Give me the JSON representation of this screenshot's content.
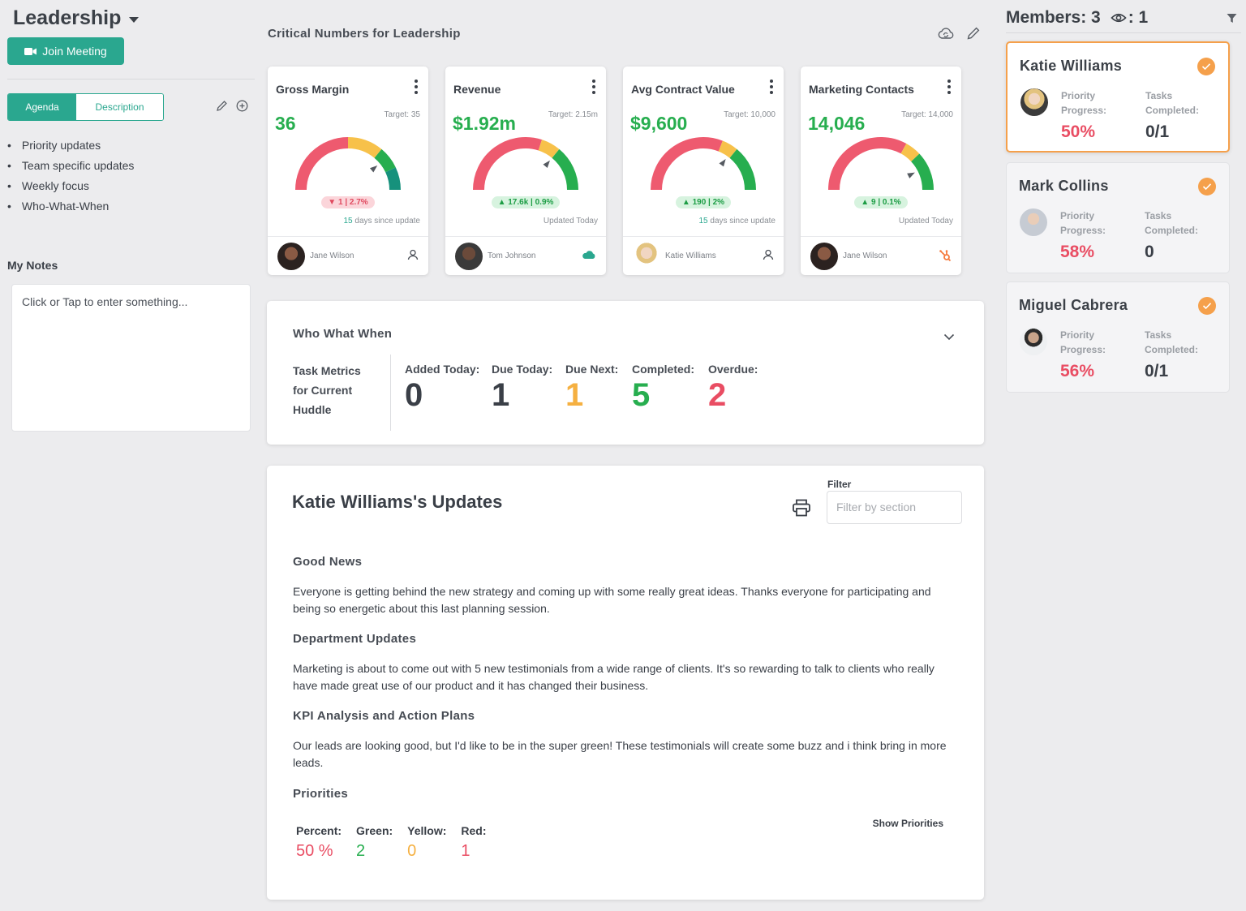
{
  "header": {
    "title": "Leadership",
    "join_label": "Join Meeting"
  },
  "tabs": {
    "agenda": "Agenda",
    "description": "Description"
  },
  "agenda_items": [
    "Priority updates",
    "Team specific updates",
    "Weekly focus",
    "Who-What-When"
  ],
  "notes": {
    "title": "My Notes",
    "placeholder": "Click or Tap to enter something..."
  },
  "critical": {
    "title": "Critical Numbers for Leadership",
    "cards": [
      {
        "name": "Gross Margin",
        "target": "Target: 35",
        "value": "36",
        "delta": "▼ 1  |  2.7%",
        "delta_dir": "down",
        "since_num": "15",
        "since_text": " days since update",
        "owner": "Jane Wilson",
        "source_icon": "user-icon",
        "needle_fraction": 0.78
      },
      {
        "name": "Revenue",
        "target": "Target: 2.15m",
        "value": "$1.92m",
        "delta": "▲ 17.6k  |  0.9%",
        "delta_dir": "up",
        "since_num": "",
        "since_text": "Updated Today",
        "owner": "Tom Johnson",
        "source_icon": "salesforce-icon",
        "needle_fraction": 0.72
      },
      {
        "name": "Avg Contract Value",
        "target": "Target: 10,000",
        "value": "$9,600",
        "delta": "▲ 190  |  2%",
        "delta_dir": "up",
        "since_num": "15",
        "since_text": " days since update",
        "owner": "Katie Williams",
        "source_icon": "user-icon",
        "needle_fraction": 0.7
      },
      {
        "name": "Marketing Contacts",
        "target": "Target: 14,000",
        "value": "14,046",
        "delta": "▲ 9  |  0.1%",
        "delta_dir": "up",
        "since_num": "",
        "since_text": "Updated Today",
        "owner": "Jane Wilson",
        "source_icon": "hubspot-icon",
        "needle_fraction": 0.85
      }
    ]
  },
  "www": {
    "title": "Who What When",
    "task_metrics": "Task Metrics for Current Huddle",
    "metrics": [
      {
        "label": "Added Today:",
        "value": "0",
        "color": "#3a3f47"
      },
      {
        "label": "Due Today:",
        "value": "1",
        "color": "#3a3f47"
      },
      {
        "label": "Due Next:",
        "value": "1",
        "color": "#f5b041"
      },
      {
        "label": "Completed:",
        "value": "5",
        "color": "#27ae4f"
      },
      {
        "label": "Overdue:",
        "value": "2",
        "color": "#e94d63"
      }
    ]
  },
  "updates": {
    "title": "Katie Williams's Updates",
    "filter_label": "Filter",
    "filter_placeholder": "Filter by section",
    "sections": [
      {
        "heading": "Good News",
        "text": "Everyone is getting behind the new strategy and coming up with some really great ideas.  Thanks everyone for participating and being so energetic about this last planning session."
      },
      {
        "heading": "Department Updates",
        "text": "Marketing is about to come out with 5 new testimonials from a wide range of clients.  It's so rewarding to talk to clients who really have made great use of our product and it has changed their business."
      },
      {
        "heading": "KPI Analysis and Action Plans",
        "text": "Our leads are looking good, but I'd like to be in the super green!  These testimonials will create some buzz and i think bring in more leads."
      },
      {
        "heading": "Priorities",
        "text": ""
      }
    ],
    "priorities": {
      "percent_label": "Percent:",
      "percent": "50 %",
      "green_label": "Green:",
      "green": "2",
      "yellow_label": "Yellow:",
      "yellow": "0",
      "red_label": "Red:",
      "red": "1",
      "show_label": "Show Priorities"
    }
  },
  "members": {
    "label": "Members: 3",
    "viewers": ": 1",
    "list": [
      {
        "name": "Katie Williams",
        "priority_label": "Priority Progress:",
        "priority": "50%",
        "tasks_label": "Tasks Completed:",
        "tasks": "0/1",
        "selected": true
      },
      {
        "name": "Mark Collins",
        "priority_label": "Priority Progress:",
        "priority": "58%",
        "tasks_label": "Tasks Completed:",
        "tasks": "0",
        "selected": false
      },
      {
        "name": "Miguel Cabrera",
        "priority_label": "Priority Progress:",
        "priority": "56%",
        "tasks_label": "Tasks Completed:",
        "tasks": "0/1",
        "selected": false
      }
    ]
  },
  "colors": {
    "accent": "#2aa78f",
    "green": "#27ae4f",
    "red": "#e94d63",
    "yellow": "#f5b041",
    "orange": "#f5a04b"
  }
}
